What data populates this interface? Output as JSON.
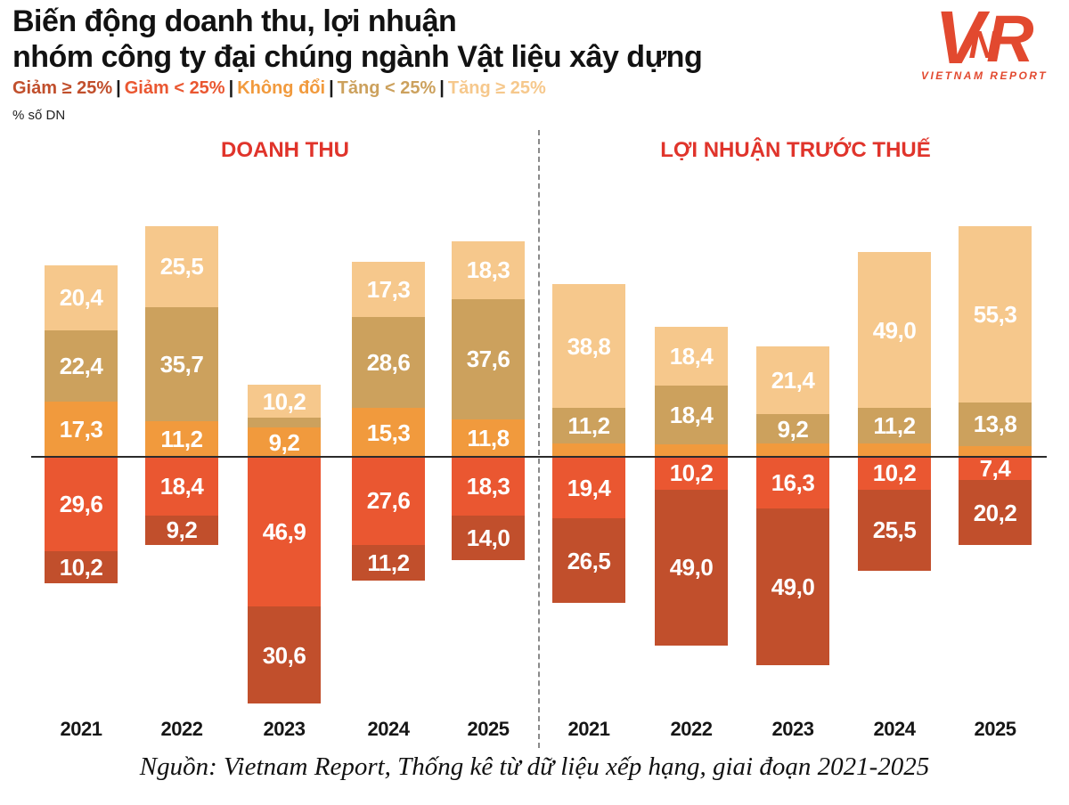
{
  "header": {
    "title_line1": "Biến động doanh thu, lợi nhuận",
    "title_line2": "nhóm công ty đại chúng ngành Vật liệu xây dựng",
    "unit_label": "% số DN",
    "logo": {
      "letters": [
        "V",
        "N",
        "R"
      ],
      "subtext": "VIETNAM REPORT",
      "color": "#E2492F"
    }
  },
  "legend": {
    "separator": "|",
    "items": [
      {
        "key": "giam_ge_25",
        "label": "Giảm ≥ 25%",
        "color": "#C14F2C"
      },
      {
        "key": "giam_lt_25",
        "label": "Giảm < 25%",
        "color": "#EA5731"
      },
      {
        "key": "khong_doi",
        "label": "Không đổi",
        "color": "#F19A3D"
      },
      {
        "key": "tang_lt_25",
        "label": "Tăng < 25%",
        "color": "#CCA15D"
      },
      {
        "key": "tang_ge_25",
        "label": "Tăng ≥ 25%",
        "color": "#F6C88C"
      }
    ]
  },
  "chart_data": {
    "type": "bar",
    "subtype": "diverging-stacked",
    "title": "Biến động doanh thu, lợi nhuận nhóm công ty đại chúng ngành Vật liệu xây dựng",
    "ylabel": "% số DN",
    "grid": false,
    "legend_position": "top",
    "series_order_top_to_bottom": [
      "tang_ge_25",
      "tang_lt_25",
      "khong_doi",
      "giam_lt_25",
      "giam_ge_25"
    ],
    "panels": [
      {
        "title": "DOANH THU",
        "categories": [
          "2021",
          "2022",
          "2023",
          "2024",
          "2025"
        ],
        "bars": [
          {
            "year": "2021",
            "segments": [
              {
                "key": "tang_ge_25",
                "value": 20.4,
                "label": "20,4"
              },
              {
                "key": "tang_lt_25",
                "value": 22.4,
                "label": "22,4"
              },
              {
                "key": "khong_doi",
                "value": 17.3,
                "label": "17,3"
              },
              {
                "key": "giam_lt_25",
                "value": 29.6,
                "label": "29,6"
              },
              {
                "key": "giam_ge_25",
                "value": 10.2,
                "label": "10,2"
              }
            ]
          },
          {
            "year": "2022",
            "segments": [
              {
                "key": "tang_ge_25",
                "value": 25.5,
                "label": "25,5"
              },
              {
                "key": "tang_lt_25",
                "value": 35.7,
                "label": "35,7"
              },
              {
                "key": "khong_doi",
                "value": 11.2,
                "label": "11,2"
              },
              {
                "key": "giam_lt_25",
                "value": 18.4,
                "label": "18,4"
              },
              {
                "key": "giam_ge_25",
                "value": 9.2,
                "label": "9,2"
              }
            ]
          },
          {
            "year": "2023",
            "segments": [
              {
                "key": "tang_ge_25",
                "value": 10.2,
                "label": "10,2"
              },
              {
                "key": "tang_lt_25",
                "value": 3.1,
                "label": ""
              },
              {
                "key": "khong_doi",
                "value": 9.2,
                "label": "9,2"
              },
              {
                "key": "giam_lt_25",
                "value": 46.9,
                "label": "46,9"
              },
              {
                "key": "giam_ge_25",
                "value": 30.6,
                "label": "30,6"
              }
            ]
          },
          {
            "year": "2024",
            "segments": [
              {
                "key": "tang_ge_25",
                "value": 17.3,
                "label": "17,3"
              },
              {
                "key": "tang_lt_25",
                "value": 28.6,
                "label": "28,6"
              },
              {
                "key": "khong_doi",
                "value": 15.3,
                "label": "15,3"
              },
              {
                "key": "giam_lt_25",
                "value": 27.6,
                "label": "27,6"
              },
              {
                "key": "giam_ge_25",
                "value": 11.2,
                "label": "11,2"
              }
            ]
          },
          {
            "year": "2025",
            "segments": [
              {
                "key": "tang_ge_25",
                "value": 18.3,
                "label": "18,3"
              },
              {
                "key": "tang_lt_25",
                "value": 37.6,
                "label": "37,6"
              },
              {
                "key": "khong_doi",
                "value": 11.8,
                "label": "11,8"
              },
              {
                "key": "giam_lt_25",
                "value": 18.3,
                "label": "18,3"
              },
              {
                "key": "giam_ge_25",
                "value": 14.0,
                "label": "14,0"
              }
            ]
          }
        ]
      },
      {
        "title": "LỢI NHUẬN TRƯỚC THUẾ",
        "categories": [
          "2021",
          "2022",
          "2023",
          "2024",
          "2025"
        ],
        "bars": [
          {
            "year": "2021",
            "segments": [
              {
                "key": "tang_ge_25",
                "value": 38.8,
                "label": "38,8"
              },
              {
                "key": "tang_lt_25",
                "value": 11.2,
                "label": "11,2"
              },
              {
                "key": "khong_doi",
                "value": 4.1,
                "label": ""
              },
              {
                "key": "giam_lt_25",
                "value": 19.4,
                "label": "19,4"
              },
              {
                "key": "giam_ge_25",
                "value": 26.5,
                "label": "26,5"
              }
            ]
          },
          {
            "year": "2022",
            "segments": [
              {
                "key": "tang_ge_25",
                "value": 18.4,
                "label": "18,4"
              },
              {
                "key": "tang_lt_25",
                "value": 18.4,
                "label": "18,4"
              },
              {
                "key": "khong_doi",
                "value": 4.0,
                "label": ""
              },
              {
                "key": "giam_lt_25",
                "value": 10.2,
                "label": "10,2"
              },
              {
                "key": "giam_ge_25",
                "value": 49.0,
                "label": "49,0"
              }
            ]
          },
          {
            "year": "2023",
            "segments": [
              {
                "key": "tang_ge_25",
                "value": 21.4,
                "label": "21,4"
              },
              {
                "key": "tang_lt_25",
                "value": 9.2,
                "label": "9,2"
              },
              {
                "key": "khong_doi",
                "value": 4.1,
                "label": ""
              },
              {
                "key": "giam_lt_25",
                "value": 16.3,
                "label": "16,3"
              },
              {
                "key": "giam_ge_25",
                "value": 49.0,
                "label": "49,0"
              }
            ]
          },
          {
            "year": "2024",
            "segments": [
              {
                "key": "tang_ge_25",
                "value": 49.0,
                "label": "49,0"
              },
              {
                "key": "tang_lt_25",
                "value": 11.2,
                "label": "11,2"
              },
              {
                "key": "khong_doi",
                "value": 4.1,
                "label": ""
              },
              {
                "key": "giam_lt_25",
                "value": 10.2,
                "label": "10,2"
              },
              {
                "key": "giam_ge_25",
                "value": 25.5,
                "label": "25,5"
              }
            ]
          },
          {
            "year": "2025",
            "segments": [
              {
                "key": "tang_ge_25",
                "value": 55.3,
                "label": "55,3"
              },
              {
                "key": "tang_lt_25",
                "value": 13.8,
                "label": "13,8"
              },
              {
                "key": "khong_doi",
                "value": 3.3,
                "label": ""
              },
              {
                "key": "giam_lt_25",
                "value": 7.4,
                "label": "7,4"
              },
              {
                "key": "giam_ge_25",
                "value": 20.2,
                "label": "20,2"
              }
            ]
          }
        ]
      }
    ]
  },
  "footer": {
    "source": "Nguồn: Vietnam Report, Thống kê từ dữ liệu xếp hạng, giai đoạn 2021-2025"
  }
}
